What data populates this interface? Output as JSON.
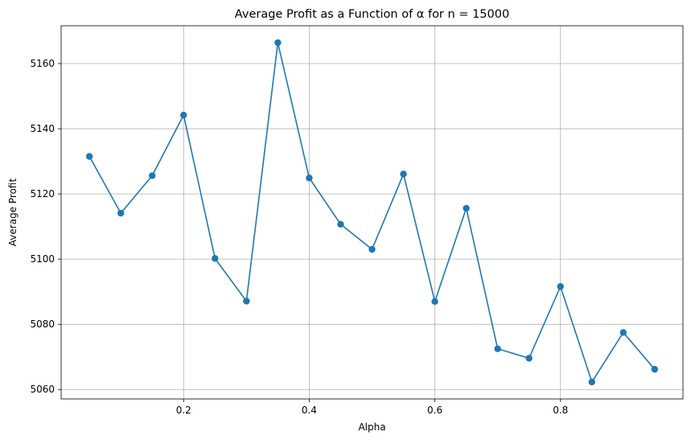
{
  "chart_data": {
    "type": "line",
    "title": "Average Profit as a Function of α for n = 15000",
    "xlabel": "Alpha",
    "ylabel": "Average Profit",
    "xlim": [
      0.005,
      0.995
    ],
    "ylim": [
      5057.1,
      5171.6
    ],
    "xticks": [
      0.2,
      0.4,
      0.6,
      0.8
    ],
    "xtick_labels": [
      "0.2",
      "0.4",
      "0.6",
      "0.8"
    ],
    "yticks": [
      5060,
      5080,
      5100,
      5120,
      5140,
      5160
    ],
    "ytick_labels": [
      "5060",
      "5080",
      "5100",
      "5120",
      "5140",
      "5160"
    ],
    "grid": true,
    "series_color": "#1f77b4",
    "marker": "circle",
    "x": [
      0.05,
      0.1,
      0.15,
      0.2,
      0.25,
      0.3,
      0.35,
      0.4,
      0.45,
      0.5,
      0.55,
      0.6,
      0.65,
      0.7,
      0.75,
      0.8,
      0.85,
      0.9,
      0.95
    ],
    "series": [
      {
        "values": [
          5131.5,
          5114.1,
          5125.6,
          5144.2,
          5100.2,
          5087.1,
          5166.4,
          5124.9,
          5110.7,
          5103.0,
          5126.1,
          5087.0,
          5115.6,
          5072.5,
          5069.6,
          5091.6,
          5062.3,
          5077.5,
          5066.2
        ]
      }
    ]
  }
}
